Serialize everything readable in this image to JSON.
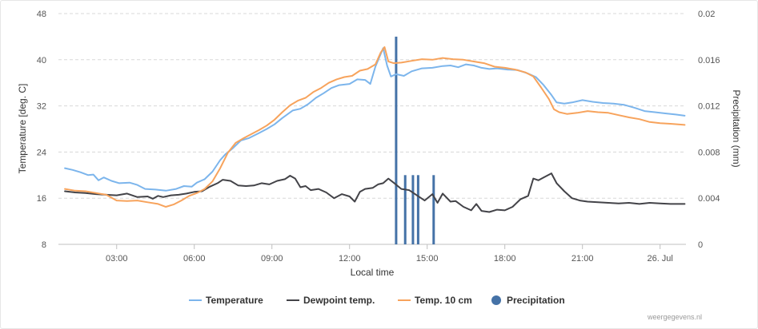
{
  "chart_data": {
    "type": "line",
    "xlabel": "Local time",
    "ylabel_left": "Temperature [deg. C]",
    "ylabel_right": "Precipitation (mm)",
    "x_range": [
      0.75,
      25.0
    ],
    "y_left_range": [
      8,
      48
    ],
    "y_right_range": [
      0,
      0.02
    ],
    "grid": true,
    "legend_position": "bottom-center",
    "x_ticks": [
      {
        "value": 3,
        "label": "03:00"
      },
      {
        "value": 6,
        "label": "06:00"
      },
      {
        "value": 9,
        "label": "09:00"
      },
      {
        "value": 12,
        "label": "12:00"
      },
      {
        "value": 15,
        "label": "15:00"
      },
      {
        "value": 18,
        "label": "18:00"
      },
      {
        "value": 21,
        "label": "21:00"
      },
      {
        "value": 24,
        "label": "26. Jul"
      }
    ],
    "y_left_ticks": [
      "8",
      "16",
      "24",
      "32",
      "40",
      "48"
    ],
    "y_right_ticks": [
      "0",
      "0.004",
      "0.008",
      "0.012",
      "0.016",
      "0.02"
    ],
    "series": [
      {
        "name": "Temperature",
        "color": "#7cb5ec",
        "axis": "left",
        "points": [
          [
            1.0,
            21.2
          ],
          [
            1.3,
            20.9
          ],
          [
            1.6,
            20.5
          ],
          [
            1.9,
            20.0
          ],
          [
            2.1,
            20.1
          ],
          [
            2.3,
            19.1
          ],
          [
            2.5,
            19.6
          ],
          [
            2.8,
            19.0
          ],
          [
            3.1,
            18.6
          ],
          [
            3.5,
            18.7
          ],
          [
            3.8,
            18.3
          ],
          [
            4.1,
            17.6
          ],
          [
            4.5,
            17.5
          ],
          [
            4.9,
            17.3
          ],
          [
            5.3,
            17.6
          ],
          [
            5.6,
            18.1
          ],
          [
            5.9,
            18.0
          ],
          [
            6.1,
            18.7
          ],
          [
            6.4,
            19.3
          ],
          [
            6.7,
            20.6
          ],
          [
            7.0,
            22.6
          ],
          [
            7.2,
            23.6
          ],
          [
            7.5,
            24.7
          ],
          [
            7.8,
            26.0
          ],
          [
            8.1,
            26.4
          ],
          [
            8.5,
            27.3
          ],
          [
            8.8,
            28.0
          ],
          [
            9.1,
            28.8
          ],
          [
            9.4,
            29.9
          ],
          [
            9.8,
            31.2
          ],
          [
            10.1,
            31.5
          ],
          [
            10.4,
            32.3
          ],
          [
            10.7,
            33.4
          ],
          [
            11.0,
            34.2
          ],
          [
            11.3,
            35.1
          ],
          [
            11.6,
            35.6
          ],
          [
            12.0,
            35.8
          ],
          [
            12.3,
            36.6
          ],
          [
            12.6,
            36.5
          ],
          [
            12.8,
            35.8
          ],
          [
            13.0,
            38.8
          ],
          [
            13.3,
            42.0
          ],
          [
            13.45,
            39.0
          ],
          [
            13.6,
            37.1
          ],
          [
            13.8,
            37.5
          ],
          [
            14.1,
            37.2
          ],
          [
            14.4,
            38.0
          ],
          [
            14.8,
            38.5
          ],
          [
            15.2,
            38.6
          ],
          [
            15.6,
            38.9
          ],
          [
            15.9,
            39.0
          ],
          [
            16.2,
            38.7
          ],
          [
            16.5,
            39.2
          ],
          [
            16.8,
            39.0
          ],
          [
            17.1,
            38.6
          ],
          [
            17.4,
            38.4
          ],
          [
            17.7,
            38.5
          ],
          [
            18.1,
            38.3
          ],
          [
            18.5,
            38.2
          ],
          [
            18.9,
            37.6
          ],
          [
            19.2,
            37.0
          ],
          [
            19.5,
            35.6
          ],
          [
            19.8,
            33.9
          ],
          [
            20.0,
            32.6
          ],
          [
            20.3,
            32.4
          ],
          [
            20.6,
            32.6
          ],
          [
            21.0,
            33.0
          ],
          [
            21.4,
            32.7
          ],
          [
            21.8,
            32.5
          ],
          [
            22.2,
            32.4
          ],
          [
            22.6,
            32.2
          ],
          [
            23.0,
            31.7
          ],
          [
            23.4,
            31.1
          ],
          [
            23.8,
            30.9
          ],
          [
            24.2,
            30.7
          ],
          [
            24.6,
            30.5
          ],
          [
            24.95,
            30.3
          ]
        ]
      },
      {
        "name": "Dewpoint temp.",
        "color": "#434348",
        "axis": "left",
        "points": [
          [
            1.0,
            17.2
          ],
          [
            1.4,
            17.0
          ],
          [
            1.8,
            16.9
          ],
          [
            2.2,
            16.7
          ],
          [
            2.6,
            16.6
          ],
          [
            3.0,
            16.5
          ],
          [
            3.4,
            16.8
          ],
          [
            3.8,
            16.2
          ],
          [
            4.2,
            16.3
          ],
          [
            4.4,
            15.9
          ],
          [
            4.6,
            16.4
          ],
          [
            4.8,
            16.2
          ],
          [
            5.1,
            16.5
          ],
          [
            5.4,
            16.6
          ],
          [
            5.7,
            16.8
          ],
          [
            6.0,
            17.1
          ],
          [
            6.3,
            17.2
          ],
          [
            6.6,
            18.0
          ],
          [
            6.9,
            18.6
          ],
          [
            7.1,
            19.2
          ],
          [
            7.4,
            19.0
          ],
          [
            7.7,
            18.2
          ],
          [
            8.0,
            18.1
          ],
          [
            8.3,
            18.2
          ],
          [
            8.6,
            18.6
          ],
          [
            8.9,
            18.4
          ],
          [
            9.2,
            19.0
          ],
          [
            9.5,
            19.3
          ],
          [
            9.7,
            19.9
          ],
          [
            9.9,
            19.4
          ],
          [
            10.1,
            17.9
          ],
          [
            10.3,
            18.1
          ],
          [
            10.5,
            17.4
          ],
          [
            10.8,
            17.6
          ],
          [
            11.1,
            17.0
          ],
          [
            11.4,
            16.0
          ],
          [
            11.7,
            16.7
          ],
          [
            12.0,
            16.3
          ],
          [
            12.2,
            15.4
          ],
          [
            12.4,
            17.1
          ],
          [
            12.6,
            17.6
          ],
          [
            12.9,
            17.8
          ],
          [
            13.1,
            18.4
          ],
          [
            13.3,
            18.6
          ],
          [
            13.5,
            19.4
          ],
          [
            13.7,
            18.7
          ],
          [
            14.0,
            17.6
          ],
          [
            14.3,
            17.4
          ],
          [
            14.6,
            16.5
          ],
          [
            14.9,
            15.6
          ],
          [
            15.2,
            16.7
          ],
          [
            15.4,
            15.2
          ],
          [
            15.6,
            16.8
          ],
          [
            15.9,
            15.4
          ],
          [
            16.1,
            15.5
          ],
          [
            16.4,
            14.5
          ],
          [
            16.7,
            13.9
          ],
          [
            16.9,
            15.0
          ],
          [
            17.1,
            13.8
          ],
          [
            17.4,
            13.6
          ],
          [
            17.7,
            14.0
          ],
          [
            18.0,
            13.9
          ],
          [
            18.3,
            14.5
          ],
          [
            18.6,
            15.8
          ],
          [
            18.9,
            16.4
          ],
          [
            19.1,
            19.4
          ],
          [
            19.3,
            19.1
          ],
          [
            19.5,
            19.6
          ],
          [
            19.8,
            20.3
          ],
          [
            20.0,
            18.6
          ],
          [
            20.3,
            17.2
          ],
          [
            20.6,
            16.0
          ],
          [
            20.9,
            15.6
          ],
          [
            21.2,
            15.4
          ],
          [
            21.6,
            15.3
          ],
          [
            22.0,
            15.2
          ],
          [
            22.4,
            15.1
          ],
          [
            22.8,
            15.2
          ],
          [
            23.2,
            15.0
          ],
          [
            23.6,
            15.2
          ],
          [
            24.0,
            15.1
          ],
          [
            24.4,
            15.0
          ],
          [
            24.95,
            15.0
          ]
        ]
      },
      {
        "name": "Temp. 10 cm",
        "color": "#f7a35c",
        "axis": "left",
        "points": [
          [
            1.0,
            17.6
          ],
          [
            1.4,
            17.3
          ],
          [
            1.8,
            17.2
          ],
          [
            2.2,
            16.9
          ],
          [
            2.6,
            16.6
          ],
          [
            3.0,
            15.6
          ],
          [
            3.4,
            15.5
          ],
          [
            3.8,
            15.6
          ],
          [
            4.2,
            15.3
          ],
          [
            4.6,
            15.0
          ],
          [
            4.9,
            14.5
          ],
          [
            5.2,
            14.9
          ],
          [
            5.5,
            15.6
          ],
          [
            5.8,
            16.4
          ],
          [
            6.1,
            16.9
          ],
          [
            6.4,
            17.6
          ],
          [
            6.7,
            18.9
          ],
          [
            7.0,
            21.2
          ],
          [
            7.3,
            23.9
          ],
          [
            7.6,
            25.6
          ],
          [
            7.9,
            26.4
          ],
          [
            8.2,
            27.1
          ],
          [
            8.5,
            27.8
          ],
          [
            8.8,
            28.6
          ],
          [
            9.1,
            29.6
          ],
          [
            9.4,
            30.9
          ],
          [
            9.7,
            32.1
          ],
          [
            10.0,
            32.9
          ],
          [
            10.3,
            33.4
          ],
          [
            10.6,
            34.4
          ],
          [
            10.9,
            35.1
          ],
          [
            11.2,
            36.0
          ],
          [
            11.5,
            36.6
          ],
          [
            11.8,
            37.0
          ],
          [
            12.1,
            37.2
          ],
          [
            12.4,
            38.1
          ],
          [
            12.7,
            38.4
          ],
          [
            13.0,
            39.2
          ],
          [
            13.2,
            41.2
          ],
          [
            13.35,
            42.2
          ],
          [
            13.5,
            39.7
          ],
          [
            13.7,
            39.4
          ],
          [
            14.0,
            39.5
          ],
          [
            14.4,
            39.8
          ],
          [
            14.8,
            40.1
          ],
          [
            15.2,
            40.0
          ],
          [
            15.6,
            40.3
          ],
          [
            16.0,
            40.1
          ],
          [
            16.4,
            40.0
          ],
          [
            16.8,
            39.7
          ],
          [
            17.2,
            39.4
          ],
          [
            17.6,
            38.8
          ],
          [
            18.0,
            38.6
          ],
          [
            18.4,
            38.3
          ],
          [
            18.8,
            37.8
          ],
          [
            19.1,
            37.1
          ],
          [
            19.4,
            35.2
          ],
          [
            19.7,
            33.2
          ],
          [
            19.9,
            31.4
          ],
          [
            20.1,
            30.9
          ],
          [
            20.4,
            30.6
          ],
          [
            20.8,
            30.8
          ],
          [
            21.2,
            31.1
          ],
          [
            21.6,
            30.9
          ],
          [
            22.0,
            30.8
          ],
          [
            22.4,
            30.4
          ],
          [
            22.8,
            30.0
          ],
          [
            23.2,
            29.7
          ],
          [
            23.6,
            29.2
          ],
          [
            24.0,
            29.0
          ],
          [
            24.4,
            28.9
          ],
          [
            24.95,
            28.7
          ]
        ]
      },
      {
        "name": "Precipitation",
        "color": "#4572a7",
        "axis": "right",
        "type": "column",
        "points": [
          [
            13.8,
            0.018
          ],
          [
            14.15,
            0.006
          ],
          [
            14.45,
            0.006
          ],
          [
            14.65,
            0.006
          ],
          [
            15.25,
            0.006
          ]
        ]
      }
    ]
  },
  "credit": "weergegevens.nl"
}
